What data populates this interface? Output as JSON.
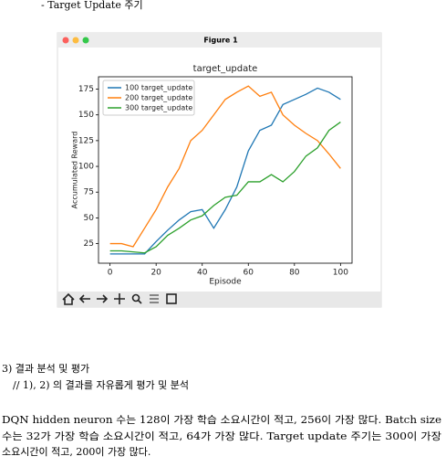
{
  "header": "- Target Update 주기",
  "window_title": "Figure 1",
  "chart_data": {
    "type": "line",
    "title": "target_update",
    "x_label": "Episode",
    "y_label": "Accumulated Reward",
    "x": [
      0,
      5,
      10,
      15,
      20,
      25,
      30,
      35,
      40,
      45,
      50,
      55,
      60,
      65,
      70,
      75,
      80,
      85,
      90,
      95,
      100
    ],
    "series": [
      {
        "name": "100 target_update",
        "color": "#1f77b4",
        "values": [
          15,
          15,
          15,
          15,
          27,
          38,
          48,
          56,
          58,
          40,
          58,
          80,
          115,
          135,
          140,
          160,
          165,
          170,
          176,
          172,
          165
        ]
      },
      {
        "name": "200 target_update",
        "color": "#ff7f0e",
        "values": [
          25,
          25,
          22,
          40,
          58,
          80,
          98,
          125,
          135,
          150,
          165,
          172,
          178,
          168,
          172,
          150,
          140,
          132,
          125,
          112,
          98
        ]
      },
      {
        "name": "300 target_update",
        "color": "#2ca02c",
        "values": [
          18,
          18,
          17,
          16,
          22,
          33,
          40,
          48,
          52,
          62,
          70,
          72,
          85,
          85,
          92,
          85,
          95,
          110,
          118,
          135,
          143
        ]
      }
    ],
    "xlim": [
      -5,
      105
    ],
    "ylim": [
      6,
      187
    ],
    "xticks": [
      0,
      20,
      40,
      60,
      80,
      100
    ],
    "yticks": [
      25,
      50,
      75,
      100,
      125,
      150,
      175
    ],
    "legend": "upper left"
  },
  "section_title": "3) 결과 분석 및 평가",
  "section_note": "// 1), 2) 의 결과를 자유롭게 평가 및 분석",
  "paragraph": [
    "DQN hidden neuron 수는 128이 가장 학습 소요시간이 적고, 256이 가장 많다. Batch size",
    "수는 32가 가장 학습 소요시간이 적고, 64가 가장 많다. Target update 주기는 300이 가장",
    "소요시간이 적고, 200이 가장 많다."
  ]
}
